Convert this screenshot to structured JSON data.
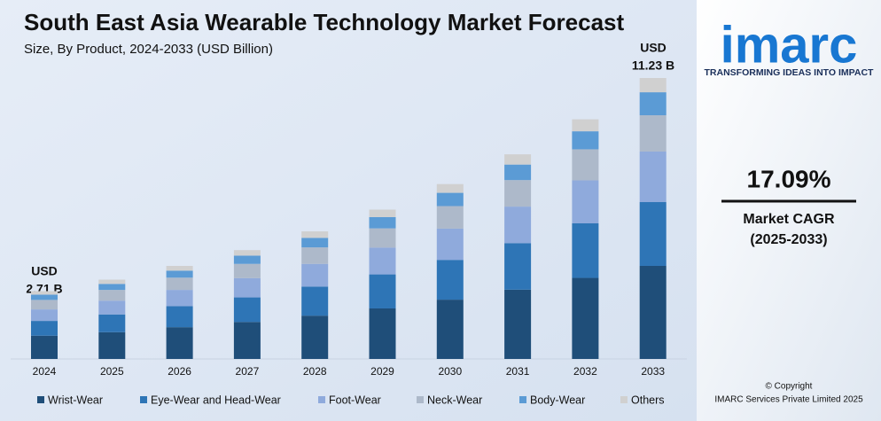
{
  "chart_data": {
    "type": "stacked-bar",
    "title": "South East Asia Wearable Technology Market Forecast",
    "subtitle": "Size, By Product, 2024-2033 (USD Billion)",
    "categories": [
      "2024",
      "2025",
      "2026",
      "2027",
      "2028",
      "2029",
      "2030",
      "2031",
      "2032",
      "2033"
    ],
    "series": [
      {
        "name": "Wrist-Wear",
        "color": "#1f4e79",
        "values": [
          0.93,
          1.07,
          1.27,
          1.48,
          1.73,
          2.02,
          2.37,
          2.77,
          3.24,
          3.72
        ]
      },
      {
        "name": "Eye-Wear and Head-Wear",
        "color": "#2e75b6",
        "values": [
          0.59,
          0.71,
          0.84,
          0.98,
          1.16,
          1.36,
          1.59,
          1.86,
          2.18,
          2.55
        ]
      },
      {
        "name": "Foot-Wear",
        "color": "#8faadc",
        "values": [
          0.46,
          0.55,
          0.65,
          0.77,
          0.91,
          1.07,
          1.25,
          1.46,
          1.72,
          2.02
        ]
      },
      {
        "name": "Neck-Wear",
        "color": "#adb9ca",
        "values": [
          0.38,
          0.43,
          0.49,
          0.57,
          0.66,
          0.77,
          0.9,
          1.06,
          1.24,
          1.45
        ]
      },
      {
        "name": "Body-Wear",
        "color": "#5b9bd5",
        "values": [
          0.21,
          0.24,
          0.28,
          0.33,
          0.38,
          0.45,
          0.53,
          0.62,
          0.72,
          0.92
        ]
      },
      {
        "name": "Others",
        "color": "#d0d0d0",
        "values": [
          0.14,
          0.17,
          0.19,
          0.22,
          0.26,
          0.3,
          0.35,
          0.41,
          0.48,
          0.57
        ]
      }
    ],
    "start_label": [
      "USD",
      "2.71 B"
    ],
    "end_label": [
      "USD",
      "11.23 B"
    ]
  },
  "brand": {
    "logo": "imarc",
    "tagline": "TRANSFORMING IDEAS INTO IMPACT",
    "cagr": "17.09%",
    "cagr_label": "Market CAGR",
    "cagr_period": "(2025-2033)",
    "copyright": "© Copyright",
    "company": "IMARC Services Private Limited 2025"
  }
}
